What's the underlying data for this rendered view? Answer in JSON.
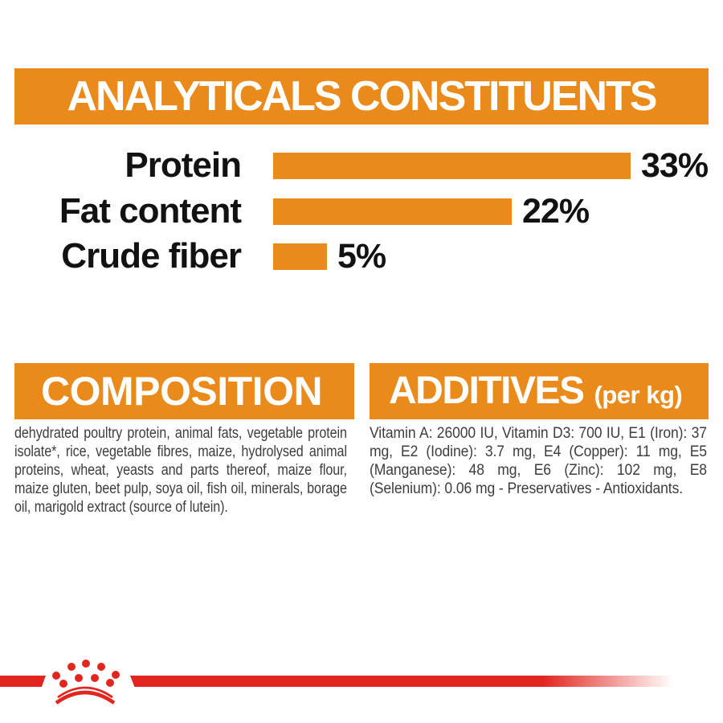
{
  "colors": {
    "orange": "#E98A1B",
    "red": "#E2261F",
    "body_text": "#3D3D3C",
    "label_black": "#121212",
    "white": "#FFFFFF"
  },
  "header": {
    "title": "ANALYTICALS CONSTITUENTS"
  },
  "chart_data": {
    "type": "bar",
    "orientation": "horizontal",
    "title": "ANALYTICALS CONSTITUENTS",
    "categories": [
      "Protein",
      "Fat content",
      "Crude fiber"
    ],
    "values": [
      33,
      22,
      5
    ],
    "unit": "%",
    "value_labels": [
      "33%",
      "22%",
      "5%"
    ],
    "xlim": [
      0,
      33
    ],
    "bar_color": "#E98A1B",
    "grid": false,
    "legend": false
  },
  "composition": {
    "title": "COMPOSITION",
    "body": "dehydrated poultry protein, animal fats, vegetable protein isolate*, rice, vegetable fibres, maize, hydrolysed animal proteins, wheat, yeasts and parts thereof, maize flour, maize gluten, beet pulp, soya oil, fish oil, minerals, borage oil, marigold extract (source of lutein)."
  },
  "additives": {
    "title": "ADDITIVES",
    "unit_note": "(per kg)",
    "body": "Vitamin A: 26000 IU, Vitamin D3: 700 IU, E1 (Iron): 37 mg, E2 (Iodine): 3.7 mg, E4 (Copper): 11 mg, E5 (Manganese): 48 mg, E6 (Zinc): 102 mg, E8 (Selenium): 0.06 mg - Preservatives - Antioxidants."
  },
  "footer": {
    "logo": "royal-canin-crown-icon",
    "stripe_color": "#E2261F"
  }
}
